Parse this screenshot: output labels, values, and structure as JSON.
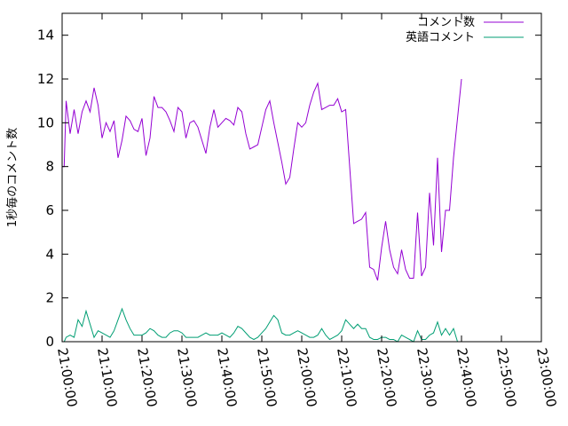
{
  "chart_data": {
    "type": "line",
    "title": "",
    "xlabel": "",
    "ylabel": "1秒毎のコメント数",
    "xlim": [
      "21:00:00",
      "23:00:00"
    ],
    "ylim": [
      0,
      15
    ],
    "x_ticks": [
      "21:00:00",
      "21:10:00",
      "21:20:00",
      "21:30:00",
      "21:40:00",
      "21:50:00",
      "22:00:00",
      "22:10:00",
      "22:20:00",
      "22:30:00",
      "22:40:00",
      "22:50:00",
      "23:00:00"
    ],
    "y_ticks": [
      0,
      2,
      4,
      6,
      8,
      10,
      12,
      14
    ],
    "grid": false,
    "legend_position": "top-right",
    "series": [
      {
        "name": "コメント数",
        "color": "#9400d3",
        "points": [
          [
            "21:00:00",
            8.0
          ],
          [
            "21:00:30",
            8.0
          ],
          [
            "21:01:00",
            11.0
          ],
          [
            "21:02:00",
            9.5
          ],
          [
            "21:03:00",
            10.6
          ],
          [
            "21:04:00",
            9.5
          ],
          [
            "21:05:00",
            10.5
          ],
          [
            "21:06:00",
            11.0
          ],
          [
            "21:07:00",
            10.5
          ],
          [
            "21:08:00",
            11.6
          ],
          [
            "21:09:00",
            10.8
          ],
          [
            "21:10:00",
            9.3
          ],
          [
            "21:11:00",
            10.0
          ],
          [
            "21:12:00",
            9.6
          ],
          [
            "21:13:00",
            10.1
          ],
          [
            "21:14:00",
            8.4
          ],
          [
            "21:15:00",
            9.2
          ],
          [
            "21:16:00",
            10.3
          ],
          [
            "21:17:00",
            10.1
          ],
          [
            "21:18:00",
            9.7
          ],
          [
            "21:19:00",
            9.6
          ],
          [
            "21:20:00",
            10.2
          ],
          [
            "21:21:00",
            8.5
          ],
          [
            "21:22:00",
            9.3
          ],
          [
            "21:23:00",
            11.2
          ],
          [
            "21:24:00",
            10.7
          ],
          [
            "21:25:00",
            10.7
          ],
          [
            "21:26:00",
            10.5
          ],
          [
            "21:27:00",
            10.1
          ],
          [
            "21:28:00",
            9.6
          ],
          [
            "21:29:00",
            10.7
          ],
          [
            "21:30:00",
            10.5
          ],
          [
            "21:31:00",
            9.3
          ],
          [
            "21:32:00",
            10.0
          ],
          [
            "21:33:00",
            10.1
          ],
          [
            "21:34:00",
            9.8
          ],
          [
            "21:35:00",
            9.2
          ],
          [
            "21:36:00",
            8.6
          ],
          [
            "21:37:00",
            9.8
          ],
          [
            "21:38:00",
            10.6
          ],
          [
            "21:39:00",
            9.8
          ],
          [
            "21:40:00",
            10.0
          ],
          [
            "21:41:00",
            10.2
          ],
          [
            "21:42:00",
            10.1
          ],
          [
            "21:43:00",
            9.9
          ],
          [
            "21:44:00",
            10.7
          ],
          [
            "21:45:00",
            10.5
          ],
          [
            "21:46:00",
            9.5
          ],
          [
            "21:47:00",
            8.8
          ],
          [
            "21:48:00",
            8.9
          ],
          [
            "21:49:00",
            9.0
          ],
          [
            "21:50:00",
            9.8
          ],
          [
            "21:51:00",
            10.6
          ],
          [
            "21:52:00",
            11.0
          ],
          [
            "21:53:00",
            10.0
          ],
          [
            "21:54:00",
            9.1
          ],
          [
            "21:55:00",
            8.2
          ],
          [
            "21:56:00",
            7.2
          ],
          [
            "21:57:00",
            7.5
          ],
          [
            "21:58:00",
            8.8
          ],
          [
            "21:59:00",
            10.0
          ],
          [
            "22:00:00",
            9.8
          ],
          [
            "22:01:00",
            10.0
          ],
          [
            "22:02:00",
            10.8
          ],
          [
            "22:03:00",
            11.4
          ],
          [
            "22:04:00",
            11.8
          ],
          [
            "22:05:00",
            10.6
          ],
          [
            "22:06:00",
            10.7
          ],
          [
            "22:07:00",
            10.8
          ],
          [
            "22:08:00",
            10.8
          ],
          [
            "22:09:00",
            11.1
          ],
          [
            "22:10:00",
            10.5
          ],
          [
            "22:11:00",
            10.6
          ],
          [
            "22:12:00",
            8.0
          ],
          [
            "22:13:00",
            5.4
          ],
          [
            "22:14:00",
            5.5
          ],
          [
            "22:15:00",
            5.6
          ],
          [
            "22:16:00",
            5.9
          ],
          [
            "22:17:00",
            3.4
          ],
          [
            "22:18:00",
            3.3
          ],
          [
            "22:19:00",
            2.8
          ],
          [
            "22:20:00",
            4.3
          ],
          [
            "22:21:00",
            5.5
          ],
          [
            "22:22:00",
            4.2
          ],
          [
            "22:23:00",
            3.4
          ],
          [
            "22:24:00",
            3.1
          ],
          [
            "22:25:00",
            4.2
          ],
          [
            "22:26:00",
            3.3
          ],
          [
            "22:27:00",
            2.9
          ],
          [
            "22:28:00",
            2.9
          ],
          [
            "22:29:00",
            5.9
          ],
          [
            "22:30:00",
            3.0
          ],
          [
            "22:31:00",
            3.4
          ],
          [
            "22:32:00",
            6.8
          ],
          [
            "22:33:00",
            4.4
          ],
          [
            "22:34:00",
            8.4
          ],
          [
            "22:35:00",
            4.1
          ],
          [
            "22:36:00",
            6.0
          ],
          [
            "22:37:00",
            6.0
          ],
          [
            "22:38:00",
            8.4
          ],
          [
            "22:40:00",
            12.0
          ]
        ]
      },
      {
        "name": "英語コメント",
        "color": "#009e73",
        "points": [
          [
            "21:00:00",
            0.0
          ],
          [
            "21:00:30",
            0.0
          ],
          [
            "21:01:00",
            0.2
          ],
          [
            "21:02:00",
            0.3
          ],
          [
            "21:03:00",
            0.2
          ],
          [
            "21:04:00",
            1.0
          ],
          [
            "21:05:00",
            0.7
          ],
          [
            "21:06:00",
            1.4
          ],
          [
            "21:07:00",
            0.8
          ],
          [
            "21:08:00",
            0.2
          ],
          [
            "21:09:00",
            0.5
          ],
          [
            "21:10:00",
            0.4
          ],
          [
            "21:11:00",
            0.3
          ],
          [
            "21:12:00",
            0.2
          ],
          [
            "21:13:00",
            0.5
          ],
          [
            "21:14:00",
            1.0
          ],
          [
            "21:15:00",
            1.5
          ],
          [
            "21:16:00",
            1.0
          ],
          [
            "21:17:00",
            0.6
          ],
          [
            "21:18:00",
            0.3
          ],
          [
            "21:19:00",
            0.3
          ],
          [
            "21:20:00",
            0.3
          ],
          [
            "21:21:00",
            0.4
          ],
          [
            "21:22:00",
            0.6
          ],
          [
            "21:23:00",
            0.5
          ],
          [
            "21:24:00",
            0.3
          ],
          [
            "21:25:00",
            0.2
          ],
          [
            "21:26:00",
            0.2
          ],
          [
            "21:27:00",
            0.4
          ],
          [
            "21:28:00",
            0.5
          ],
          [
            "21:29:00",
            0.5
          ],
          [
            "21:30:00",
            0.4
          ],
          [
            "21:31:00",
            0.2
          ],
          [
            "21:32:00",
            0.2
          ],
          [
            "21:33:00",
            0.2
          ],
          [
            "21:34:00",
            0.2
          ],
          [
            "21:35:00",
            0.3
          ],
          [
            "21:36:00",
            0.4
          ],
          [
            "21:37:00",
            0.3
          ],
          [
            "21:38:00",
            0.3
          ],
          [
            "21:39:00",
            0.3
          ],
          [
            "21:40:00",
            0.4
          ],
          [
            "21:41:00",
            0.3
          ],
          [
            "21:42:00",
            0.2
          ],
          [
            "21:43:00",
            0.4
          ],
          [
            "21:44:00",
            0.7
          ],
          [
            "21:45:00",
            0.6
          ],
          [
            "21:46:00",
            0.4
          ],
          [
            "21:47:00",
            0.2
          ],
          [
            "21:48:00",
            0.1
          ],
          [
            "21:49:00",
            0.2
          ],
          [
            "21:50:00",
            0.4
          ],
          [
            "21:51:00",
            0.6
          ],
          [
            "21:52:00",
            0.9
          ],
          [
            "21:53:00",
            1.2
          ],
          [
            "21:54:00",
            1.0
          ],
          [
            "21:55:00",
            0.4
          ],
          [
            "21:56:00",
            0.3
          ],
          [
            "21:57:00",
            0.3
          ],
          [
            "21:58:00",
            0.4
          ],
          [
            "21:59:00",
            0.5
          ],
          [
            "22:00:00",
            0.4
          ],
          [
            "22:01:00",
            0.3
          ],
          [
            "22:02:00",
            0.2
          ],
          [
            "22:03:00",
            0.2
          ],
          [
            "22:04:00",
            0.3
          ],
          [
            "22:05:00",
            0.6
          ],
          [
            "22:06:00",
            0.3
          ],
          [
            "22:07:00",
            0.1
          ],
          [
            "22:08:00",
            0.2
          ],
          [
            "22:09:00",
            0.3
          ],
          [
            "22:10:00",
            0.5
          ],
          [
            "22:11:00",
            1.0
          ],
          [
            "22:12:00",
            0.8
          ],
          [
            "22:13:00",
            0.6
          ],
          [
            "22:14:00",
            0.8
          ],
          [
            "22:15:00",
            0.6
          ],
          [
            "22:16:00",
            0.6
          ],
          [
            "22:17:00",
            0.2
          ],
          [
            "22:18:00",
            0.1
          ],
          [
            "22:19:00",
            0.1
          ],
          [
            "22:20:00",
            0.2
          ],
          [
            "22:21:00",
            0.2
          ],
          [
            "22:22:00",
            0.1
          ],
          [
            "22:23:00",
            0.1
          ],
          [
            "22:24:00",
            0.0
          ],
          [
            "22:25:00",
            0.3
          ],
          [
            "22:26:00",
            0.2
          ],
          [
            "22:27:00",
            0.1
          ],
          [
            "22:28:00",
            0.0
          ],
          [
            "22:29:00",
            0.5
          ],
          [
            "22:30:00",
            0.1
          ],
          [
            "22:31:00",
            0.1
          ],
          [
            "22:32:00",
            0.3
          ],
          [
            "22:33:00",
            0.4
          ],
          [
            "22:34:00",
            0.9
          ],
          [
            "22:35:00",
            0.3
          ],
          [
            "22:36:00",
            0.6
          ],
          [
            "22:37:00",
            0.3
          ],
          [
            "22:38:00",
            0.6
          ],
          [
            "22:39:00",
            0.0
          ]
        ]
      }
    ]
  }
}
